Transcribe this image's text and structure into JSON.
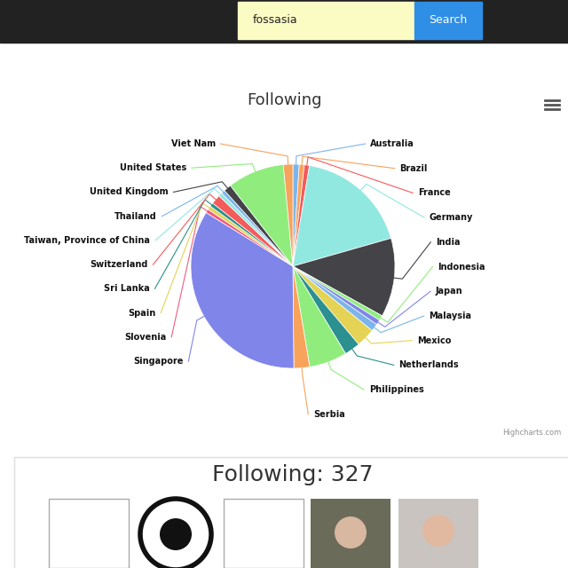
{
  "chart_data": {
    "type": "pie",
    "title": "Following",
    "categories": [
      "Australia",
      "Brazil",
      "France",
      "Germany",
      "India",
      "Indonesia",
      "Japan",
      "Malaysia",
      "Mexico",
      "Netherlands",
      "Philippines",
      "Serbia",
      "Singapore",
      "Slovenia",
      "Spain",
      "Sri Lanka",
      "Switzerland",
      "Taiwan, Province of China",
      "Thailand",
      "United Kingdom",
      "United States",
      "Viet Nam"
    ],
    "values": [
      1.0,
      0.8,
      0.8,
      18,
      12.5,
      0.8,
      0.8,
      1.2,
      3,
      2.5,
      6,
      2.5,
      34,
      0.6,
      0.6,
      0.6,
      1.5,
      0.6,
      0.6,
      1.2,
      9,
      1.5
    ],
    "colors": [
      "#7cb5ec",
      "#f7a35c",
      "#f45b5b",
      "#91e8e1",
      "#434348",
      "#90ed7d",
      "#8085e9",
      "#7cb5ec",
      "#e4d354",
      "#2b908f",
      "#90ed7d",
      "#f7a35c",
      "#8085e9",
      "#f15c80",
      "#e4d354",
      "#2b908f",
      "#f45b5b",
      "#91e8e1",
      "#7cb5ec",
      "#434348",
      "#90ed7d",
      "#f7a35c"
    ]
  },
  "page": {
    "search_query": "fossasia",
    "search_button": "Search",
    "heading": "Following: 327",
    "credit": "Highcharts.com"
  }
}
